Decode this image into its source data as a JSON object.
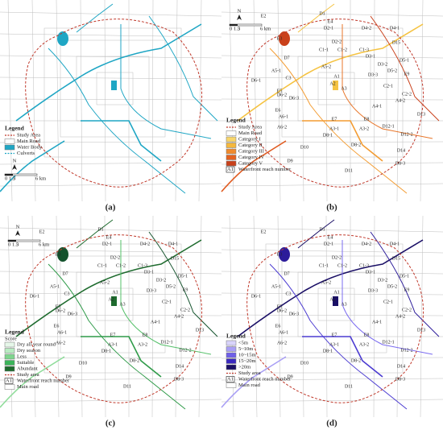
{
  "reach_labels": [
    "E2",
    "D1",
    "E4",
    "D2-1",
    "D4-2",
    "D4-1",
    "E3",
    "D2-2",
    "D15",
    "D7",
    "C1-1",
    "C1-2",
    "C1-3",
    "D3-1",
    "D5-1",
    "A5-1",
    "A5-2",
    "D3-2",
    "D5-2",
    "A1",
    "D3-3",
    "D6-1",
    "C3",
    "E9",
    "A2",
    "C2-1",
    "D6-2",
    "D6-3",
    "A3",
    "E5",
    "C2-2",
    "A4-2",
    "A4-1",
    "D13",
    "E6",
    "A6-1",
    "E7",
    "E8",
    "A6-2",
    "A3-1",
    "A3-2",
    "D12-1",
    "D8-1",
    "D12-2",
    "D10",
    "D8-2",
    "D14",
    "D9",
    "D8-3",
    "D11"
  ],
  "north": "N",
  "scale_labels": [
    "0",
    "1.5",
    "3",
    "6 km"
  ],
  "panels": [
    {
      "caption": "(a)",
      "show_reaches": false,
      "scale": "legend",
      "river_colors": [
        "#1fa6c4"
      ],
      "legend": {
        "title": "Legend",
        "items": [
          {
            "label": "Study Area",
            "color": "#c0392b",
            "dashed": true
          },
          {
            "label": "Main Road",
            "color": "#ffffff"
          },
          {
            "label": "Water Body",
            "color": "#1fa6c4"
          },
          {
            "label": "Culverts",
            "color": "#1fa6c4",
            "dashed": true
          }
        ]
      }
    },
    {
      "caption": "(b)",
      "show_reaches": true,
      "scale": "top",
      "river_colors": [
        "#f5c342",
        "#f39c32",
        "#e8762a",
        "#e05a1f",
        "#c9401a"
      ],
      "legend": {
        "title": "Legend",
        "items": [
          {
            "label": "Study Area",
            "color": "#c0392b",
            "dashed": true
          },
          {
            "label": "Main Road",
            "color": "#ffffff"
          },
          {
            "label": "Category I",
            "color": "#f8d66b"
          },
          {
            "label": "Category II",
            "color": "#f5b83d"
          },
          {
            "label": "Category III",
            "color": "#f08a2c"
          },
          {
            "label": "Category IV",
            "color": "#e4621f"
          },
          {
            "label": "Category V",
            "color": "#c9401a"
          },
          {
            "code": "A1",
            "label": "Waterfront reach number"
          }
        ]
      }
    },
    {
      "caption": "(c)",
      "show_reaches": true,
      "scale": "top",
      "river_colors": [
        "#1e6b2e",
        "#2e9a48",
        "#55c06a",
        "#8fdc9a",
        "#14532d"
      ],
      "legend": {
        "title": "Legend",
        "subtitle": "Score",
        "items": [
          {
            "label": "Dry all year round",
            "color": "#e6f7e9"
          },
          {
            "label": "Dry season",
            "color": "#b9ecc2"
          },
          {
            "label": "Less",
            "color": "#7fd68e"
          },
          {
            "label": "Suitable",
            "color": "#3bb55a"
          },
          {
            "label": "Abundant",
            "color": "#1e6b2e"
          },
          {
            "label": "Study area",
            "color": "#c0392b",
            "dashed": true
          },
          {
            "code": "A1",
            "label": "Waterfront reach number"
          },
          {
            "label": "Main road",
            "color": "#ffffff"
          }
        ]
      }
    },
    {
      "caption": "(d)",
      "show_reaches": true,
      "scale": "none",
      "river_colors": [
        "#1a0f66",
        "#4b3bd1",
        "#7b6cf0",
        "#a99ff5",
        "#2c1c9a"
      ],
      "legend": {
        "title": "Legend",
        "items": [
          {
            "label": "<5m",
            "color": "#d9d4fb"
          },
          {
            "label": "5~10m",
            "color": "#a99ff5"
          },
          {
            "label": "10~15m",
            "color": "#6f5fe8"
          },
          {
            "label": "15~20m",
            "color": "#3a28c0"
          },
          {
            "label": ">20m",
            "color": "#1a0f66"
          },
          {
            "label": "Study area",
            "color": "#c0392b",
            "dashed": true
          },
          {
            "code": "A1",
            "label": "Waterfront reach number"
          },
          {
            "label": "Main road",
            "color": "#ffffff"
          }
        ]
      }
    }
  ]
}
